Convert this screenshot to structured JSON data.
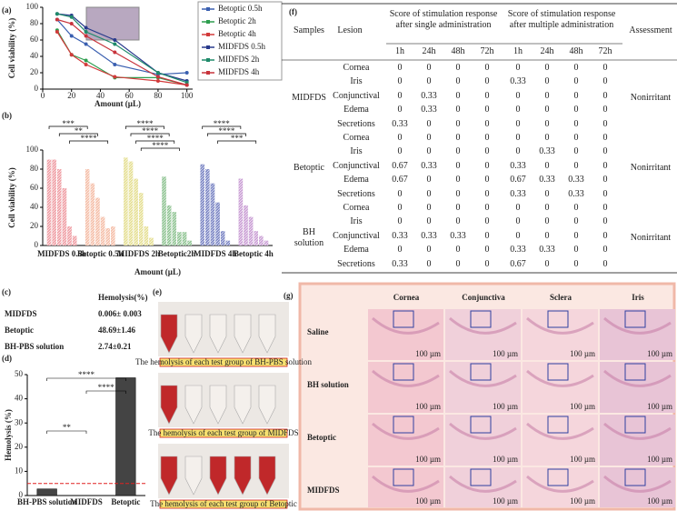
{
  "panel_labels": [
    "(a)",
    "(b)",
    "(c)",
    "(d)",
    "(e)",
    "(f)",
    "(g)"
  ],
  "chart_data": [
    {
      "type": "line",
      "xlabel": "Amount (µL)",
      "ylabel": "Cell viability (%)",
      "x": [
        10,
        20,
        30,
        50,
        80,
        100
      ],
      "xlim": [
        0,
        104
      ],
      "xticks": [
        0,
        20,
        40,
        60,
        80,
        100
      ],
      "ylim": [
        0,
        100
      ],
      "yticks": [
        0,
        20,
        40,
        60,
        80,
        100
      ],
      "legend": "right",
      "series": [
        {
          "name": "Betoptic 0.5h",
          "color": "#3a5fb0",
          "values": [
            85,
            65,
            55,
            30,
            18,
            20
          ]
        },
        {
          "name": "Betoptic  2h",
          "color": "#2e9e4f",
          "values": [
            72,
            42,
            35,
            14,
            14,
            5
          ]
        },
        {
          "name": "Betoptic  4h",
          "color": "#d23a3a",
          "values": [
            70,
            42,
            30,
            15,
            10,
            5
          ]
        },
        {
          "name": "MIDFDS 0.5h",
          "color": "#283a8c",
          "values": [
            92,
            90,
            75,
            60,
            20,
            10
          ]
        },
        {
          "name": "MIDFDS 2h",
          "color": "#1f8a6a",
          "values": [
            92,
            88,
            70,
            55,
            20,
            8
          ]
        },
        {
          "name": "MIDFDS 4h",
          "color": "#c8343c",
          "values": [
            85,
            80,
            65,
            45,
            15,
            5
          ]
        }
      ]
    },
    {
      "type": "bar",
      "xlabel": "Amount (µL)",
      "ylabel": "Cell viability (%)",
      "ylim": [
        0,
        100
      ],
      "yticks": [
        0,
        20,
        40,
        60,
        80,
        100
      ],
      "series": [
        {
          "name": "MIDFDS 0.5h",
          "color": "#e8707a",
          "values": [
            90,
            90,
            80,
            60,
            20,
            10
          ]
        },
        {
          "name": "Betoptic 0.5h",
          "color": "#f0a080",
          "values": [
            80,
            65,
            50,
            30,
            18,
            20
          ]
        },
        {
          "name": "MIDFDS 2h",
          "color": "#d8d060",
          "values": [
            92,
            88,
            70,
            55,
            20,
            8
          ]
        },
        {
          "name": "Betoptic2h",
          "color": "#5aa860",
          "values": [
            72,
            42,
            35,
            14,
            14,
            5
          ]
        },
        {
          "name": "MIDFDS 4h",
          "color": "#3a4aa8",
          "values": [
            85,
            80,
            65,
            45,
            15,
            5
          ]
        },
        {
          "name": "Betoptic 4h",
          "color": "#b070c0",
          "values": [
            70,
            42,
            30,
            15,
            10,
            5
          ]
        }
      ],
      "annotations": [
        "***",
        "**",
        "****",
        "****",
        "****",
        "****",
        "****",
        "****",
        "****",
        "***"
      ]
    },
    {
      "type": "bar",
      "ylabel": "Hemolysis (%)",
      "categories": [
        "BH-PBS solution",
        "MIDFDS",
        "Betoptic"
      ],
      "values": [
        2.74,
        0.006,
        48.69
      ],
      "color": "#444444",
      "ylim": [
        0,
        50
      ],
      "yticks": [
        0,
        10,
        20,
        30,
        40,
        50
      ],
      "reference_line": 5,
      "reference_color": "#e02020",
      "annotations": [
        "**",
        "****",
        "****"
      ]
    }
  ],
  "hemolysis_table": {
    "header": "Hemolysis(%)",
    "rows": [
      [
        "MIDFDS",
        "0.006± 0.003"
      ],
      [
        "Betoptic",
        "48.69±1.46"
      ],
      [
        "BH-PBS solution",
        "2.74±0.21"
      ]
    ]
  },
  "hemolysis_photos": {
    "captions": [
      "The hemolysis of each test group of BH-PBS solution",
      "The hemolysis of each test group of MIDFDS",
      "The hemolysis of each test group of Betoptic"
    ]
  },
  "irritation_table": {
    "headers": {
      "samples": "Samples",
      "lesion": "Lesion",
      "single": "Score of stimulation response after single administration",
      "multiple": "Score of stimulation response after multiple administration",
      "assessment": "Assessment"
    },
    "times": [
      "1h",
      "24h",
      "48h",
      "72h"
    ],
    "groups": [
      {
        "sample": "MIDFDS",
        "assessment": "Nonirritant",
        "rows": [
          {
            "lesion": "Cornea",
            "scores": [
              0,
              0,
              0,
              0,
              0,
              0,
              0,
              0
            ]
          },
          {
            "lesion": "Iris",
            "scores": [
              0,
              0,
              0,
              0,
              0.33,
              0,
              0,
              0
            ]
          },
          {
            "lesion": "Conjunctival",
            "scores": [
              0,
              0.33,
              0,
              0,
              0,
              0,
              0,
              0
            ]
          },
          {
            "lesion": "Edema",
            "scores": [
              0,
              0.33,
              0,
              0,
              0,
              0,
              0,
              0
            ]
          },
          {
            "lesion": "Secretions",
            "scores": [
              0.33,
              0,
              0,
              0,
              0,
              0,
              0,
              0
            ]
          }
        ]
      },
      {
        "sample": "Betoptic",
        "assessment": "Nonirritant",
        "rows": [
          {
            "lesion": "Cornea",
            "scores": [
              0,
              0,
              0,
              0,
              0,
              0,
              0,
              0
            ]
          },
          {
            "lesion": "Iris",
            "scores": [
              0,
              0,
              0,
              0,
              0,
              0.33,
              0,
              0
            ]
          },
          {
            "lesion": "Conjunctival",
            "scores": [
              0.67,
              0.33,
              0,
              0,
              0.33,
              0,
              0,
              0
            ]
          },
          {
            "lesion": "Edema",
            "scores": [
              0.67,
              0,
              0,
              0,
              0.67,
              0.33,
              0.33,
              0
            ]
          },
          {
            "lesion": "Secretions",
            "scores": [
              0,
              0,
              0,
              0,
              0.33,
              0,
              0.33,
              0
            ]
          }
        ]
      },
      {
        "sample": "BH solution",
        "assessment": "Nonirritant",
        "rows": [
          {
            "lesion": "Cornea",
            "scores": [
              0,
              0,
              0,
              0,
              0,
              0,
              0,
              0
            ]
          },
          {
            "lesion": "Iris",
            "scores": [
              0,
              0,
              0,
              0,
              0,
              0,
              0,
              0
            ]
          },
          {
            "lesion": "Conjunctival",
            "scores": [
              0.33,
              0.33,
              0.33,
              0,
              0,
              0,
              0,
              0
            ]
          },
          {
            "lesion": "Edema",
            "scores": [
              0,
              0,
              0,
              0,
              0.33,
              0.33,
              0,
              0
            ]
          },
          {
            "lesion": "Secretions",
            "scores": [
              0.33,
              0,
              0,
              0,
              0.67,
              0,
              0,
              0
            ]
          }
        ]
      }
    ]
  },
  "histology": {
    "columns": [
      "Cornea",
      "Conjunctiva",
      "Sclera",
      "Iris"
    ],
    "rows": [
      "Saline",
      "BH solution",
      "Betoptic",
      "MIDFDS"
    ],
    "scale_bar": "100 µm"
  }
}
